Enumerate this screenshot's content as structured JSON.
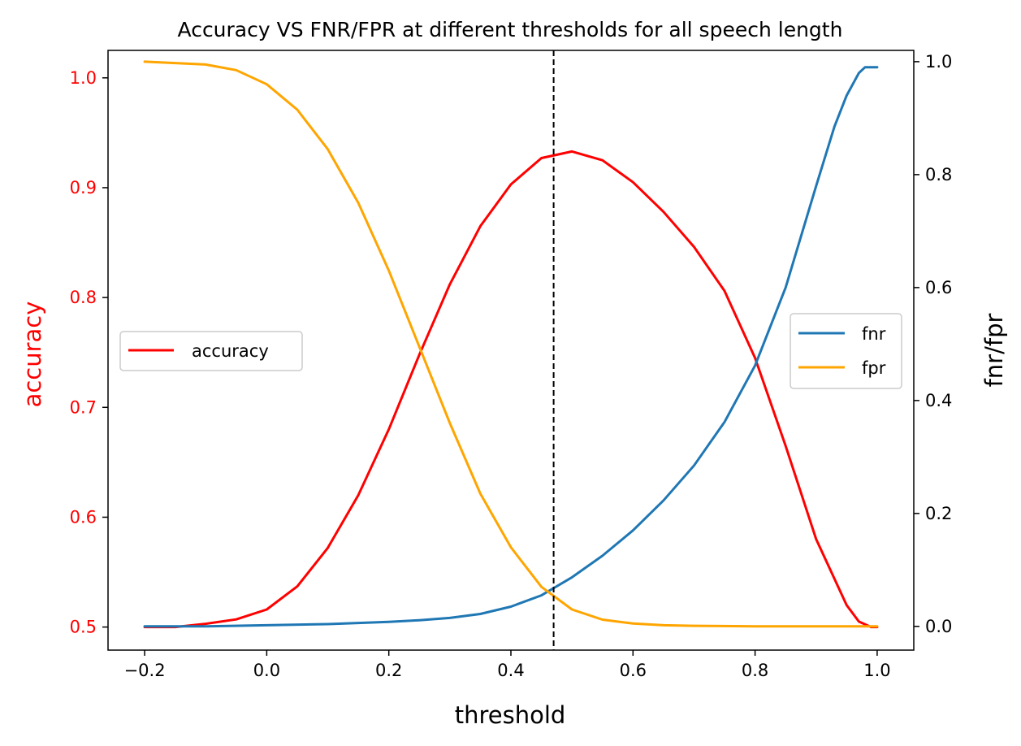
{
  "chart_data": {
    "type": "line",
    "title": "Accuracy VS FNR/FPR at different thresholds for all speech length",
    "xlabel": "threshold",
    "ylabel_left": "accuracy",
    "ylabel_right": "fnr/fpr",
    "xlim": [
      -0.26,
      1.06
    ],
    "ylim_left": [
      0.479,
      1.025
    ],
    "ylim_right": [
      -0.042,
      1.02
    ],
    "x_ticks": [
      -0.2,
      0.0,
      0.2,
      0.4,
      0.6,
      0.8,
      1.0
    ],
    "x_tick_labels": [
      "−0.2",
      "0.0",
      "0.2",
      "0.4",
      "0.6",
      "0.8",
      "1.0"
    ],
    "y_left_ticks": [
      0.5,
      0.6,
      0.7,
      0.8,
      0.9,
      1.0
    ],
    "y_left_tick_labels": [
      "0.5",
      "0.6",
      "0.7",
      "0.8",
      "0.9",
      "1.0"
    ],
    "y_right_ticks": [
      0.0,
      0.2,
      0.4,
      0.6,
      0.8,
      1.0
    ],
    "y_right_tick_labels": [
      "0.0",
      "0.2",
      "0.4",
      "0.6",
      "0.8",
      "1.0"
    ],
    "vertical_line": {
      "x": 0.47,
      "style": "dashed",
      "color": "#000000"
    },
    "grid": false,
    "left_axis_color": "#ff0000",
    "series": [
      {
        "name": "accuracy",
        "axis": "left",
        "color": "#ff0000",
        "x": [
          -0.2,
          -0.15,
          -0.1,
          -0.05,
          0.0,
          0.05,
          0.1,
          0.15,
          0.2,
          0.25,
          0.3,
          0.35,
          0.4,
          0.45,
          0.5,
          0.55,
          0.6,
          0.65,
          0.7,
          0.75,
          0.8,
          0.85,
          0.9,
          0.95,
          0.97,
          0.99,
          1.0
        ],
        "values": [
          0.5,
          0.5,
          0.503,
          0.507,
          0.516,
          0.537,
          0.572,
          0.62,
          0.68,
          0.748,
          0.812,
          0.865,
          0.903,
          0.927,
          0.933,
          0.925,
          0.905,
          0.878,
          0.846,
          0.806,
          0.745,
          0.665,
          0.58,
          0.52,
          0.505,
          0.5,
          0.5
        ]
      },
      {
        "name": "fnr",
        "axis": "right",
        "color": "#1f77b4",
        "x": [
          -0.2,
          -0.1,
          0.0,
          0.1,
          0.2,
          0.25,
          0.3,
          0.35,
          0.4,
          0.45,
          0.5,
          0.55,
          0.6,
          0.65,
          0.7,
          0.75,
          0.8,
          0.85,
          0.9,
          0.93,
          0.95,
          0.97,
          0.98,
          1.0
        ],
        "values": [
          0.0,
          0.0,
          0.002,
          0.004,
          0.008,
          0.011,
          0.015,
          0.022,
          0.035,
          0.055,
          0.087,
          0.125,
          0.17,
          0.223,
          0.285,
          0.362,
          0.462,
          0.6,
          0.78,
          0.885,
          0.94,
          0.98,
          0.99,
          0.99
        ]
      },
      {
        "name": "fpr",
        "axis": "right",
        "color": "#ffa500",
        "x": [
          -0.2,
          -0.1,
          -0.05,
          0.0,
          0.05,
          0.1,
          0.15,
          0.2,
          0.25,
          0.3,
          0.35,
          0.4,
          0.45,
          0.5,
          0.55,
          0.6,
          0.65,
          0.7,
          0.8,
          0.9,
          1.0
        ],
        "values": [
          1.0,
          0.995,
          0.985,
          0.96,
          0.915,
          0.845,
          0.75,
          0.63,
          0.495,
          0.36,
          0.235,
          0.14,
          0.07,
          0.03,
          0.012,
          0.005,
          0.002,
          0.001,
          0.0,
          0.0,
          0.0
        ]
      }
    ],
    "legends": [
      {
        "placement": "center-left",
        "entries": [
          "accuracy"
        ]
      },
      {
        "placement": "center-right",
        "entries": [
          "fnr",
          "fpr"
        ]
      }
    ]
  }
}
